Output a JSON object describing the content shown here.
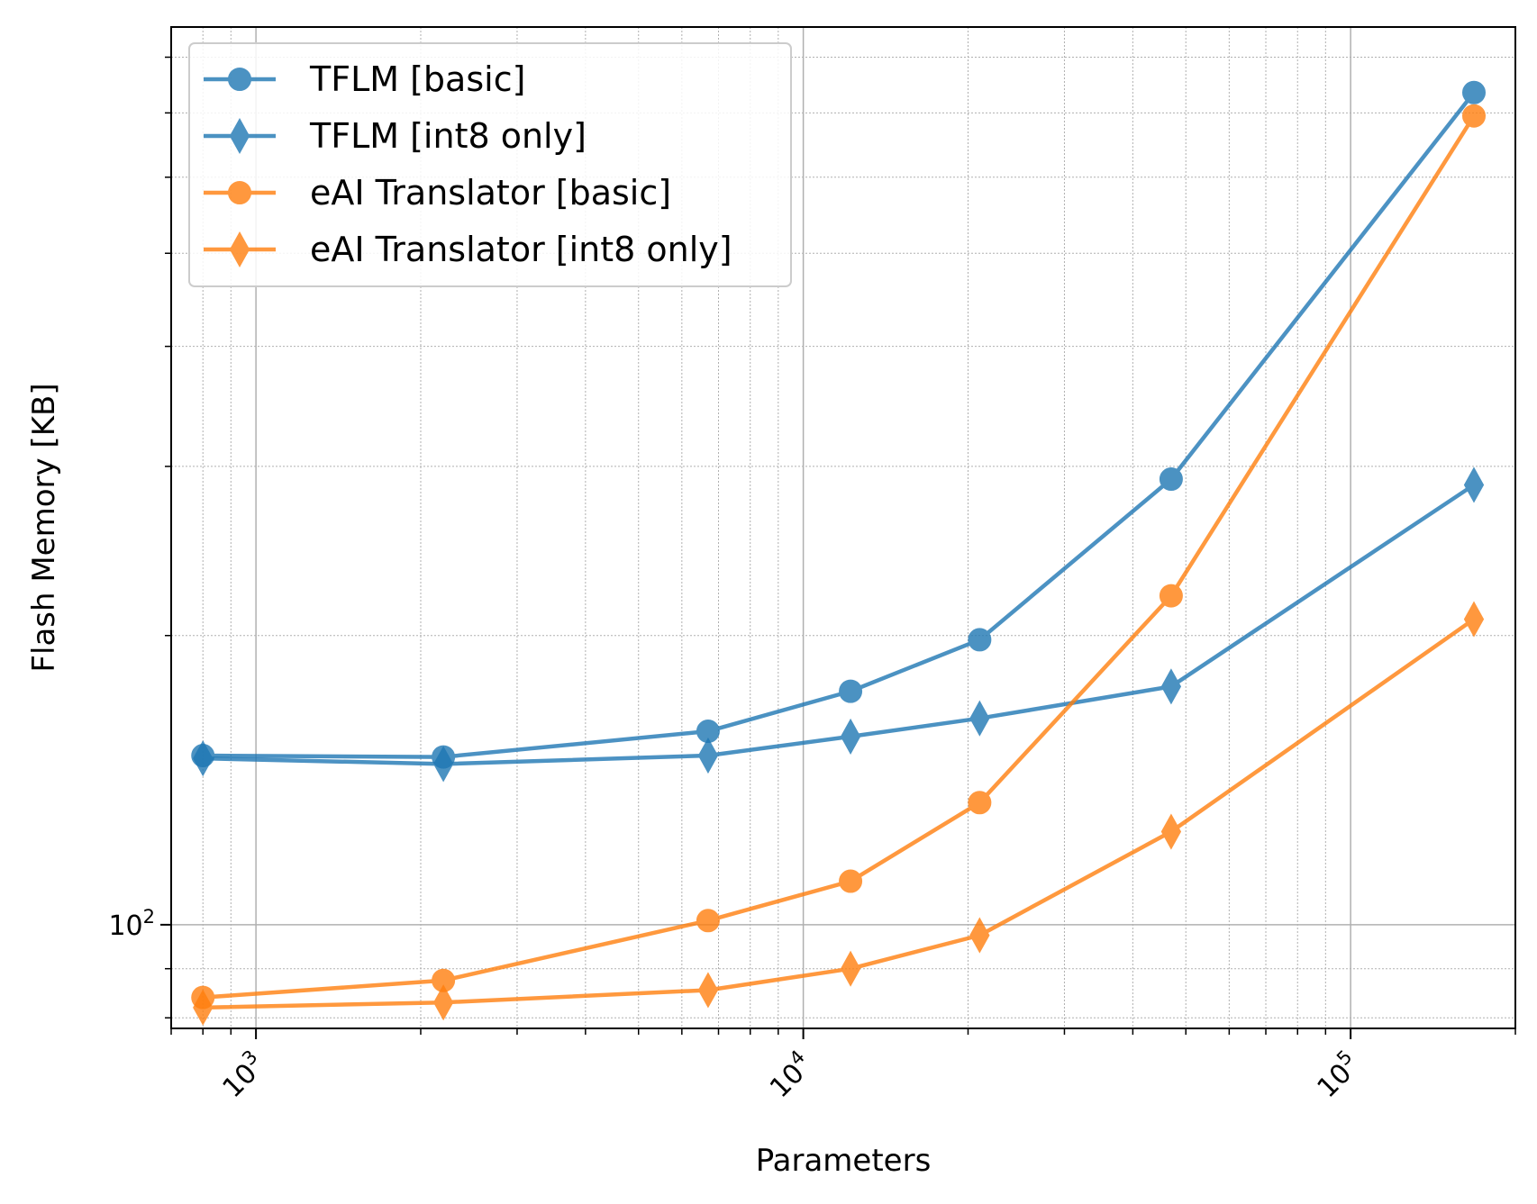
{
  "chart_data": {
    "type": "line",
    "xlabel": "Parameters",
    "ylabel": "Flash Memory [KB]",
    "xscale": "log",
    "yscale": "log",
    "xlim": [
      700,
      200000
    ],
    "ylim": [
      78,
      860
    ],
    "grid": true,
    "legend_position": "top-left",
    "x_ticks": [
      {
        "value": 1000,
        "base": "10",
        "exp": "3"
      },
      {
        "value": 10000,
        "base": "10",
        "exp": "4"
      },
      {
        "value": 100000,
        "base": "10",
        "exp": "5"
      }
    ],
    "y_ticks": [
      {
        "value": 100,
        "base": "10",
        "exp": "2"
      }
    ],
    "x": [
      800,
      2200,
      6700,
      12200,
      21000,
      47000,
      168000
    ],
    "series": [
      {
        "name": "TFLM [basic]",
        "color": "#1f77b4",
        "marker": "circle",
        "values": [
          150,
          149.5,
          159,
          175,
          198,
          291,
          735
        ]
      },
      {
        "name": "TFLM [int8 only]",
        "color": "#1f77b4",
        "marker": "diamond",
        "values": [
          149,
          147,
          150,
          157,
          164,
          177,
          287
        ]
      },
      {
        "name": "eAI Translator [basic]",
        "color": "#ff7f0e",
        "marker": "circle",
        "values": [
          84,
          87.5,
          101,
          111,
          134,
          220,
          695
        ]
      },
      {
        "name": "eAI Translator [int8 only]",
        "color": "#ff7f0e",
        "marker": "diamond",
        "values": [
          82,
          83,
          85.5,
          90,
          97.5,
          125,
          208
        ]
      }
    ]
  }
}
